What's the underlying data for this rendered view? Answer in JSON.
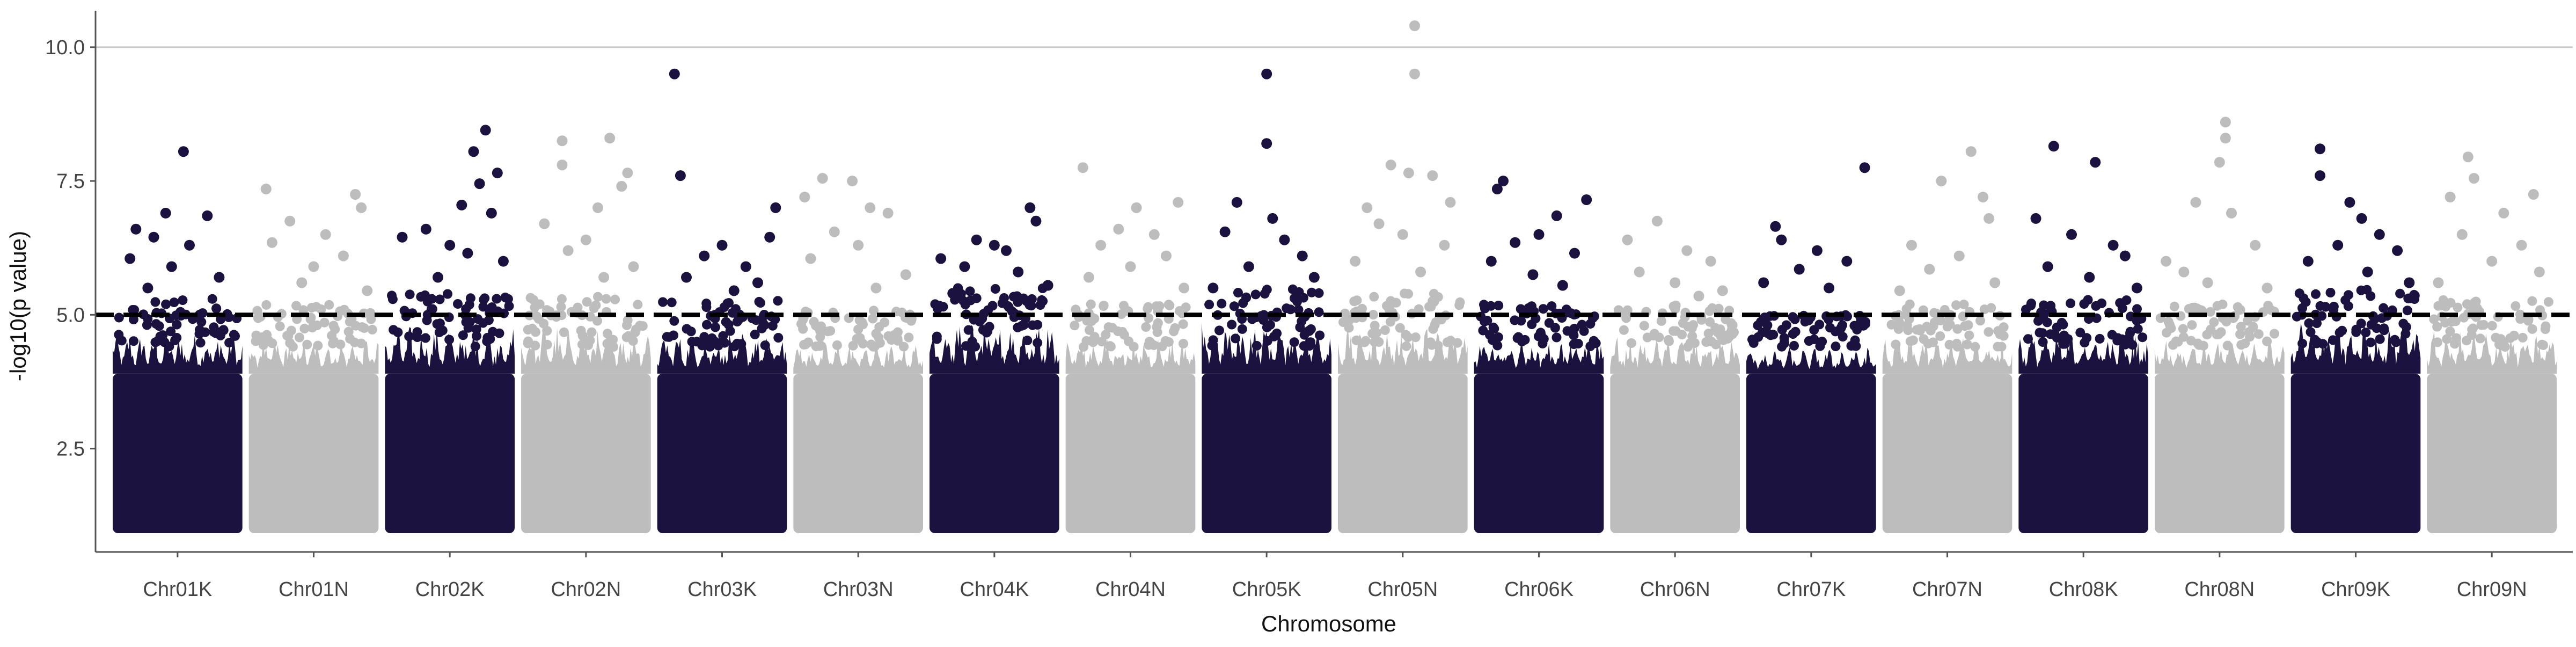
{
  "chart_data": {
    "type": "scatter",
    "subtype": "manhattan",
    "xlabel": "Chromosome",
    "ylabel": "-log10(p value)",
    "ylim": [
      1.0,
      10.5
    ],
    "y_ticks": [
      "2.5",
      "5.0",
      "7.5",
      "10.0"
    ],
    "y_tick_values": [
      2.5,
      5.0,
      7.5,
      10.0
    ],
    "threshold": 5.0,
    "grid": "horizontal gridline at 10.0",
    "colors": {
      "K": "#1c1240",
      "N": "#bdbdbd",
      "threshold": "#000000",
      "grid": "#c8c8c8",
      "axis": "#555555"
    },
    "categories": [
      "Chr01K",
      "Chr01N",
      "Chr02K",
      "Chr02N",
      "Chr03K",
      "Chr03N",
      "Chr04K",
      "Chr04N",
      "Chr05K",
      "Chr05N",
      "Chr06K",
      "Chr06N",
      "Chr07K",
      "Chr07N",
      "Chr08K",
      "Chr08N",
      "Chr09K",
      "Chr09N"
    ],
    "dense_band_top": [
      4.7,
      4.6,
      4.8,
      4.8,
      4.7,
      4.5,
      4.9,
      4.6,
      4.9,
      4.8,
      4.6,
      4.6,
      4.4,
      4.6,
      4.7,
      4.6,
      4.9,
      4.7
    ],
    "outliers": [
      [
        [
          0.55,
          8.05
        ],
        [
          0.4,
          6.9
        ],
        [
          0.75,
          6.85
        ],
        [
          0.15,
          6.6
        ],
        [
          0.3,
          6.45
        ],
        [
          0.6,
          6.3
        ],
        [
          0.1,
          6.05
        ],
        [
          0.45,
          5.9
        ],
        [
          0.85,
          5.7
        ],
        [
          0.25,
          5.5
        ]
      ],
      [
        [
          0.1,
          7.35
        ],
        [
          0.85,
          7.25
        ],
        [
          0.9,
          7.0
        ],
        [
          0.3,
          6.75
        ],
        [
          0.6,
          6.5
        ],
        [
          0.15,
          6.35
        ],
        [
          0.75,
          6.1
        ],
        [
          0.5,
          5.9
        ],
        [
          0.4,
          5.6
        ],
        [
          0.95,
          5.45
        ]
      ],
      [
        [
          0.8,
          8.45
        ],
        [
          0.7,
          8.05
        ],
        [
          0.9,
          7.65
        ],
        [
          0.75,
          7.45
        ],
        [
          0.6,
          7.05
        ],
        [
          0.85,
          6.9
        ],
        [
          0.3,
          6.6
        ],
        [
          0.5,
          6.3
        ],
        [
          0.65,
          6.15
        ],
        [
          0.1,
          6.45
        ],
        [
          0.95,
          6.0
        ],
        [
          0.4,
          5.7
        ]
      ],
      [
        [
          0.3,
          8.25
        ],
        [
          0.7,
          8.3
        ],
        [
          0.85,
          7.65
        ],
        [
          0.3,
          7.8
        ],
        [
          0.8,
          7.4
        ],
        [
          0.6,
          7.0
        ],
        [
          0.15,
          6.7
        ],
        [
          0.5,
          6.4
        ],
        [
          0.35,
          6.2
        ],
        [
          0.9,
          5.9
        ],
        [
          0.65,
          5.7
        ]
      ],
      [
        [
          0.1,
          9.5
        ],
        [
          0.15,
          7.6
        ],
        [
          0.95,
          7.0
        ],
        [
          0.9,
          6.45
        ],
        [
          0.5,
          6.3
        ],
        [
          0.35,
          6.1
        ],
        [
          0.7,
          5.9
        ],
        [
          0.2,
          5.7
        ],
        [
          0.8,
          5.6
        ],
        [
          0.6,
          5.45
        ]
      ],
      [
        [
          0.2,
          7.55
        ],
        [
          0.45,
          7.5
        ],
        [
          0.6,
          7.0
        ],
        [
          0.05,
          7.2
        ],
        [
          0.75,
          6.9
        ],
        [
          0.3,
          6.55
        ],
        [
          0.5,
          6.3
        ],
        [
          0.1,
          6.05
        ],
        [
          0.9,
          5.75
        ],
        [
          0.65,
          5.5
        ]
      ],
      [
        [
          0.8,
          7.0
        ],
        [
          0.85,
          6.75
        ],
        [
          0.35,
          6.4
        ],
        [
          0.5,
          6.3
        ],
        [
          0.6,
          6.2
        ],
        [
          0.05,
          6.05
        ],
        [
          0.25,
          5.9
        ],
        [
          0.7,
          5.8
        ],
        [
          0.95,
          5.55
        ],
        [
          0.15,
          5.4
        ]
      ],
      [
        [
          0.1,
          7.75
        ],
        [
          0.55,
          7.0
        ],
        [
          0.9,
          7.1
        ],
        [
          0.4,
          6.6
        ],
        [
          0.7,
          6.5
        ],
        [
          0.25,
          6.3
        ],
        [
          0.8,
          6.1
        ],
        [
          0.5,
          5.9
        ],
        [
          0.15,
          5.7
        ],
        [
          0.95,
          5.5
        ]
      ],
      [
        [
          0.5,
          9.5
        ],
        [
          0.5,
          8.2
        ],
        [
          0.25,
          7.1
        ],
        [
          0.55,
          6.8
        ],
        [
          0.15,
          6.55
        ],
        [
          0.65,
          6.4
        ],
        [
          0.8,
          6.1
        ],
        [
          0.35,
          5.9
        ],
        [
          0.9,
          5.7
        ],
        [
          0.05,
          5.5
        ]
      ],
      [
        [
          0.6,
          10.4
        ],
        [
          0.6,
          9.5
        ],
        [
          0.4,
          7.8
        ],
        [
          0.55,
          7.65
        ],
        [
          0.75,
          7.6
        ],
        [
          0.9,
          7.1
        ],
        [
          0.2,
          7.0
        ],
        [
          0.3,
          6.7
        ],
        [
          0.5,
          6.5
        ],
        [
          0.85,
          6.3
        ],
        [
          0.1,
          6.0
        ],
        [
          0.65,
          5.8
        ]
      ],
      [
        [
          0.2,
          7.5
        ],
        [
          0.15,
          7.35
        ],
        [
          0.9,
          7.15
        ],
        [
          0.65,
          6.85
        ],
        [
          0.5,
          6.5
        ],
        [
          0.3,
          6.35
        ],
        [
          0.8,
          6.15
        ],
        [
          0.1,
          6.0
        ],
        [
          0.45,
          5.75
        ],
        [
          0.7,
          5.55
        ]
      ],
      [
        [
          0.35,
          6.75
        ],
        [
          0.1,
          6.4
        ],
        [
          0.6,
          6.2
        ],
        [
          0.8,
          6.0
        ],
        [
          0.2,
          5.8
        ],
        [
          0.5,
          5.6
        ],
        [
          0.9,
          5.45
        ],
        [
          0.7,
          5.35
        ]
      ],
      [
        [
          0.95,
          7.75
        ],
        [
          0.2,
          6.65
        ],
        [
          0.25,
          6.4
        ],
        [
          0.55,
          6.2
        ],
        [
          0.8,
          6.0
        ],
        [
          0.4,
          5.85
        ],
        [
          0.1,
          5.6
        ],
        [
          0.65,
          5.5
        ]
      ],
      [
        [
          0.45,
          7.5
        ],
        [
          0.7,
          8.05
        ],
        [
          0.8,
          7.2
        ],
        [
          0.85,
          6.8
        ],
        [
          0.2,
          6.3
        ],
        [
          0.6,
          6.1
        ],
        [
          0.35,
          5.85
        ],
        [
          0.9,
          5.6
        ],
        [
          0.1,
          5.45
        ]
      ],
      [
        [
          0.25,
          8.15
        ],
        [
          0.6,
          7.85
        ],
        [
          0.1,
          6.8
        ],
        [
          0.4,
          6.5
        ],
        [
          0.75,
          6.3
        ],
        [
          0.85,
          6.1
        ],
        [
          0.2,
          5.9
        ],
        [
          0.55,
          5.7
        ],
        [
          0.95,
          5.5
        ]
      ],
      [
        [
          0.55,
          8.6
        ],
        [
          0.55,
          8.3
        ],
        [
          0.5,
          7.85
        ],
        [
          0.3,
          7.1
        ],
        [
          0.6,
          6.9
        ],
        [
          0.05,
          6.0
        ],
        [
          0.8,
          6.3
        ],
        [
          0.2,
          5.8
        ],
        [
          0.4,
          5.6
        ],
        [
          0.9,
          5.5
        ]
      ],
      [
        [
          0.2,
          8.1
        ],
        [
          0.2,
          7.6
        ],
        [
          0.45,
          7.1
        ],
        [
          0.55,
          6.8
        ],
        [
          0.7,
          6.5
        ],
        [
          0.35,
          6.3
        ],
        [
          0.85,
          6.2
        ],
        [
          0.1,
          6.0
        ],
        [
          0.6,
          5.8
        ],
        [
          0.95,
          5.6
        ]
      ],
      [
        [
          0.3,
          7.95
        ],
        [
          0.35,
          7.55
        ],
        [
          0.15,
          7.2
        ],
        [
          0.85,
          7.25
        ],
        [
          0.6,
          6.9
        ],
        [
          0.25,
          6.5
        ],
        [
          0.75,
          6.3
        ],
        [
          0.5,
          6.0
        ],
        [
          0.9,
          5.8
        ],
        [
          0.05,
          5.6
        ]
      ]
    ]
  }
}
